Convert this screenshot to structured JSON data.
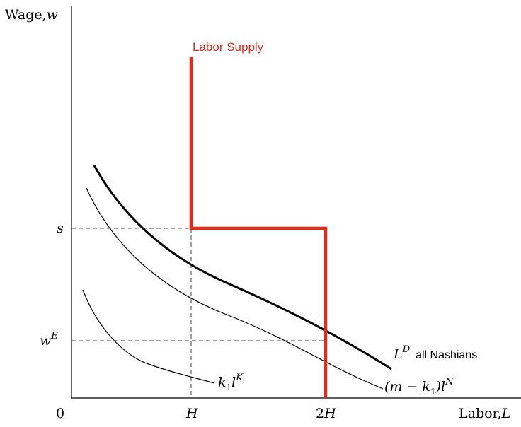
{
  "labels": {
    "y_axis": "Wage,",
    "y_axis_var": "w",
    "x_axis": "Labor,",
    "x_axis_var": "L",
    "origin": "0",
    "tick_s": "s",
    "tick_wE_base": "w",
    "tick_wE_sup": "E",
    "tick_H": "H",
    "tick_2H_coef": "2",
    "tick_2H_var": "H",
    "supply": "Labor Supply",
    "demand_base": "L",
    "demand_sup": "D",
    "demand_desc": "all Nashians",
    "curve_k_coef": "k",
    "curve_k_sub": "1",
    "curve_k_var": "l",
    "curve_k_sup": "K",
    "curve_mk_open": "(m − k",
    "curve_mk_sub": "1",
    "curve_mk_close": ")l",
    "curve_mk_sup": "N"
  },
  "colors": {
    "supply": "#e32b17",
    "axis": "#000000",
    "dashed": "#444444"
  }
}
